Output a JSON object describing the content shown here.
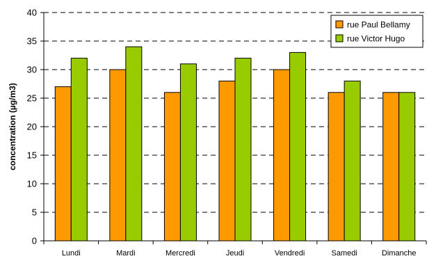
{
  "chart_data": {
    "type": "bar",
    "title": "",
    "xlabel": "",
    "ylabel": "concentration (µg/m3)",
    "ylim": [
      0,
      40
    ],
    "yticks": [
      0,
      5,
      10,
      15,
      20,
      25,
      30,
      35,
      40
    ],
    "grid": "horizontal dashed",
    "legend_position": "top-right",
    "categories": [
      "Lundi",
      "Mardi",
      "Mercredi",
      "Jeudi",
      "Vendredi",
      "Samedi",
      "Dimanche"
    ],
    "series": [
      {
        "name": "rue Paul Bellamy",
        "color": "#FF9900",
        "values": [
          27,
          30,
          26,
          28,
          30,
          26,
          26
        ]
      },
      {
        "name": "rue Victor Hugo",
        "color": "#99CC00",
        "values": [
          32,
          34,
          31,
          32,
          33,
          28,
          26
        ]
      }
    ]
  }
}
